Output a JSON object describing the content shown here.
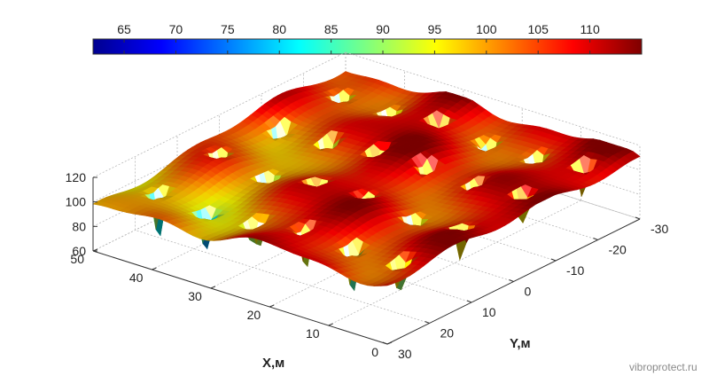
{
  "chart_data": {
    "type": "surface-3d",
    "title": "",
    "xlabel": "X,м",
    "ylabel": "Y,м",
    "zlabel": "",
    "x_ticks": [
      0,
      10,
      20,
      30,
      40,
      50
    ],
    "y_ticks": [
      30,
      20,
      10,
      0,
      -10,
      -20,
      -30
    ],
    "z_ticks": [
      60,
      80,
      100,
      120
    ],
    "xlim": [
      0,
      50
    ],
    "ylim": [
      -30,
      30
    ],
    "zlim": [
      60,
      120
    ],
    "colorbar": {
      "ticks": [
        65,
        70,
        75,
        80,
        85,
        90,
        95,
        100,
        105,
        110
      ],
      "range": [
        62,
        115
      ],
      "colormap": "jet",
      "placement": "top"
    },
    "surface_summary": {
      "min_level": 62,
      "max_level": 114,
      "dominant_level": 108
    },
    "grid": true
  },
  "credit": "vibroprotect.ru",
  "colors": {
    "background": "#ffffff",
    "axis": "#333333",
    "grid": "#b8b8b8"
  }
}
